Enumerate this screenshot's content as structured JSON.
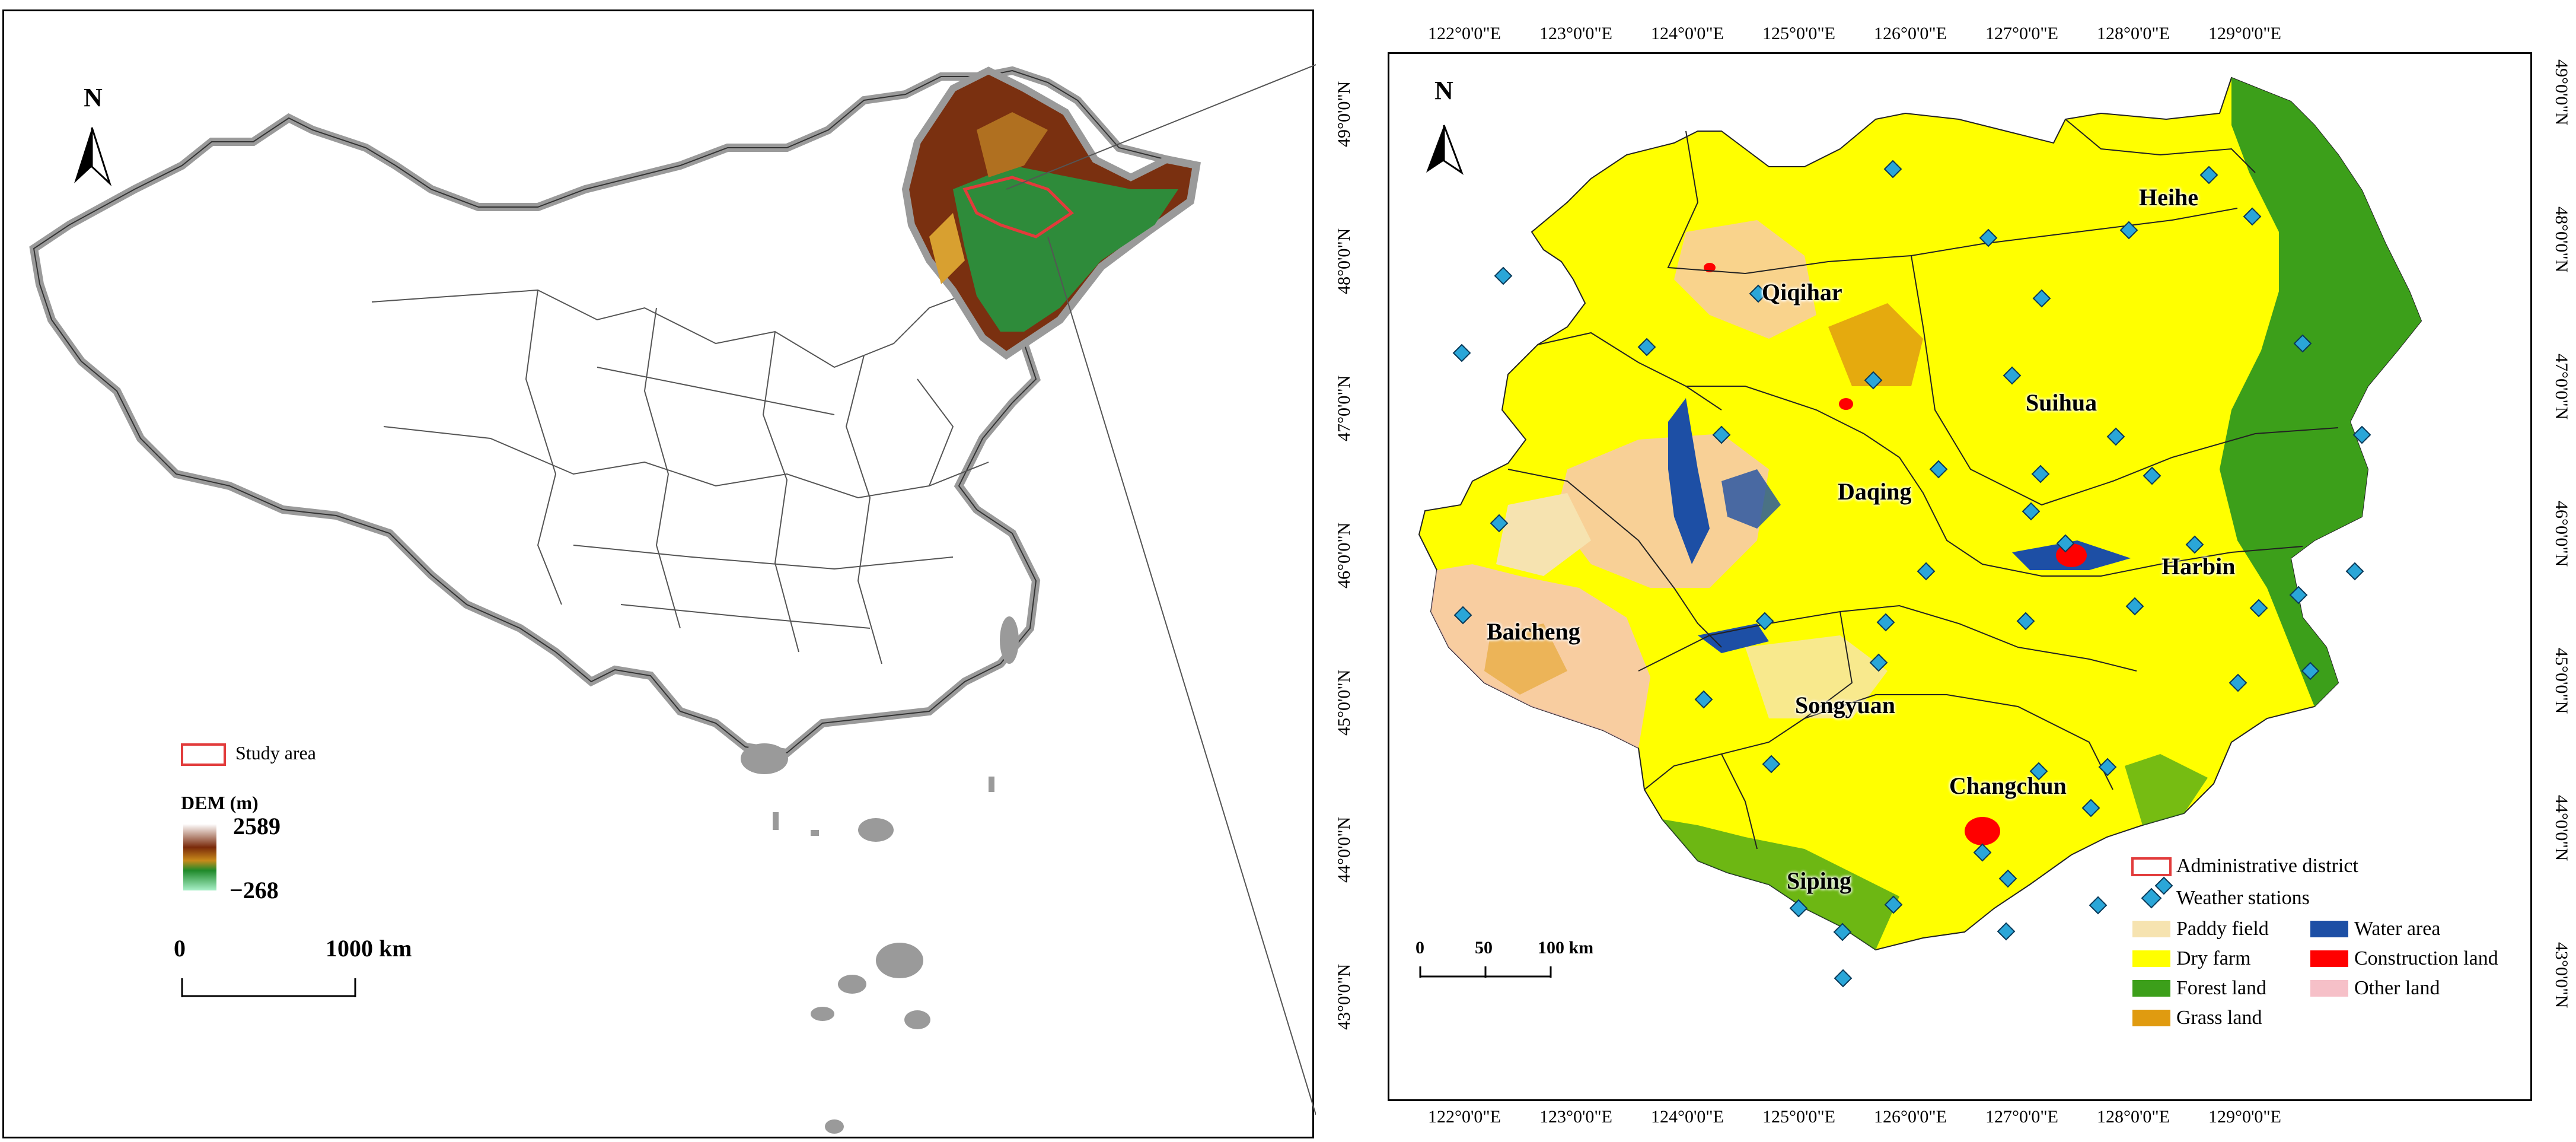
{
  "left_map": {
    "north": "N",
    "study_area_label": "Study area",
    "dem_title": "DEM (m)",
    "dem_max": "2589",
    "dem_min": "−268",
    "scale_start": "0",
    "scale_end": "1000 km",
    "colors": {
      "study_area": "#e23b3b",
      "outline": "#9a9a9a"
    }
  },
  "right_map": {
    "north": "N",
    "top_ticks": [
      "122°0'0\"E",
      "123°0'0\"E",
      "124°0'0\"E",
      "125°0'0\"E",
      "126°0'0\"E",
      "127°0'0\"E",
      "128°0'0\"E",
      "129°0'0\"E"
    ],
    "bottom_ticks": [
      "122°0'0\"E",
      "123°0'0\"E",
      "124°0'0\"E",
      "125°0'0\"E",
      "126°0'0\"E",
      "127°0'0\"E",
      "128°0'0\"E",
      "129°0'0\"E"
    ],
    "left_ticks": [
      "49°0'0\"N",
      "48°0'0\"N",
      "47°0'0\"N",
      "46°0'0\"N",
      "45°0'0\"N",
      "44°0'0\"N",
      "43°0'0\"N"
    ],
    "right_ticks": [
      "49°0'0\"N",
      "48°0'0\"N",
      "47°0'0\"N",
      "46°0'0\"N",
      "45°0'0\"N",
      "44°0'0\"N",
      "43°0'0\"N"
    ],
    "cities": [
      "Heihe",
      "Qiqihar",
      "Suihua",
      "Daqing",
      "Harbin",
      "Baicheng",
      "Songyuan",
      "Changchun",
      "Siping"
    ],
    "scale": {
      "a": "0",
      "b": "50",
      "c": "100 km"
    },
    "legend": {
      "admin": "Administrative district",
      "stations": "Weather stations",
      "paddy": "Paddy field",
      "dry": "Dry farm",
      "forest": "Forest land",
      "grass": "Grass land",
      "water": "Water area",
      "construction": "Construction land",
      "other": "Other land"
    },
    "colors": {
      "paddy": "#f6e3b0",
      "dry": "#ffff00",
      "forest": "#3c9f1a",
      "grass": "#e09b10",
      "water": "#1d4fa5",
      "construction": "#ff0000",
      "other": "#f6c0c8",
      "station": "#2aa6d8"
    }
  }
}
